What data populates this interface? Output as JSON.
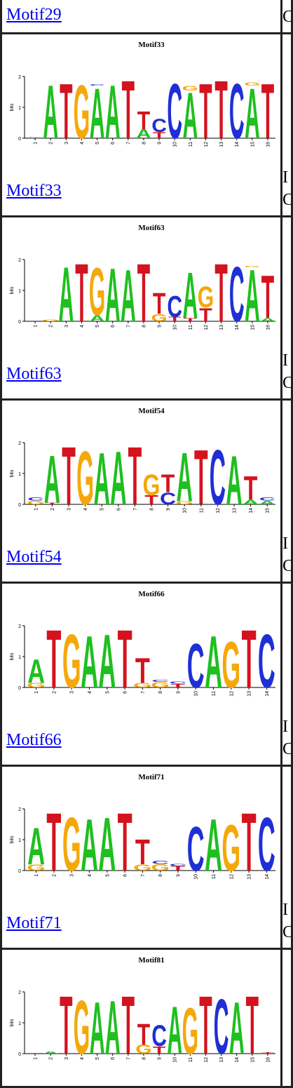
{
  "colors": {
    "A": "#1fbf1f",
    "C": "#1f2fd6",
    "G": "#f5a80a",
    "T": "#d4131f"
  },
  "axis_label": "bits",
  "top_row": {
    "link": "Motif29",
    "side": [
      "C"
    ]
  },
  "motifs": [
    {
      "name": "Motif33",
      "link": "Motif33",
      "side": [
        "I",
        "C"
      ],
      "positions": [
        [
          [
            "A",
            0.02
          ],
          [
            "C",
            0.01
          ]
        ],
        [
          [
            "A",
            1.8
          ]
        ],
        [
          [
            "T",
            1.85
          ]
        ],
        [
          [
            "G",
            1.8
          ]
        ],
        [
          [
            "A",
            1.7
          ],
          [
            "C",
            0.05
          ]
        ],
        [
          [
            "A",
            1.8
          ]
        ],
        [
          [
            "T",
            1.95
          ]
        ],
        [
          [
            "A",
            0.3
          ],
          [
            "T",
            0.6
          ]
        ],
        [
          [
            "T",
            0.2
          ],
          [
            "C",
            0.45
          ]
        ],
        [
          [
            "C",
            1.85
          ]
        ],
        [
          [
            "A",
            1.55
          ],
          [
            "G",
            0.15
          ]
        ],
        [
          [
            "T",
            1.85
          ]
        ],
        [
          [
            "T",
            1.95
          ]
        ],
        [
          [
            "C",
            1.85
          ]
        ],
        [
          [
            "A",
            1.7
          ],
          [
            "G",
            0.1
          ]
        ],
        [
          [
            "T",
            1.85
          ]
        ]
      ]
    },
    {
      "name": "Motif63",
      "link": "Motif63",
      "side": [
        "I",
        "C"
      ],
      "positions": [
        [],
        [
          [
            "G",
            0.06
          ]
        ],
        [
          [
            "A",
            1.85
          ]
        ],
        [
          [
            "T",
            1.95
          ]
        ],
        [
          [
            "A",
            0.2
          ],
          [
            "G",
            1.6
          ]
        ],
        [
          [
            "A",
            1.8
          ]
        ],
        [
          [
            "A",
            1.75
          ]
        ],
        [
          [
            "T",
            1.95
          ]
        ],
        [
          [
            "G",
            0.25
          ],
          [
            "T",
            0.7
          ]
        ],
        [
          [
            "T",
            0.15
          ],
          [
            "C",
            0.7
          ]
        ],
        [
          [
            "T",
            0.1
          ],
          [
            "A",
            1.55
          ]
        ],
        [
          [
            "T",
            0.45
          ],
          [
            "G",
            0.7
          ]
        ],
        [
          [
            "T",
            1.95
          ]
        ],
        [
          [
            "C",
            1.85
          ]
        ],
        [
          [
            "A",
            1.75
          ],
          [
            "G",
            0.05
          ]
        ],
        [
          [
            "A",
            0.1
          ],
          [
            "T",
            1.45
          ]
        ]
      ]
    },
    {
      "name": "Motif54",
      "link": "Motif54",
      "side": [
        "I",
        "C"
      ],
      "positions": [
        [
          [
            "G",
            0.12
          ],
          [
            "C",
            0.1
          ]
        ],
        [
          [
            "T",
            0.06
          ],
          [
            "A",
            1.6
          ]
        ],
        [
          [
            "T",
            1.95
          ]
        ],
        [
          [
            "G",
            1.8
          ]
        ],
        [
          [
            "A",
            1.75
          ]
        ],
        [
          [
            "A",
            1.8
          ]
        ],
        [
          [
            "T",
            1.95
          ]
        ],
        [
          [
            "T",
            0.3
          ],
          [
            "G",
            0.7
          ]
        ],
        [
          [
            "C",
            0.4
          ],
          [
            "T",
            0.6
          ]
        ],
        [
          [
            "G",
            0.1
          ],
          [
            "A",
            1.65
          ]
        ],
        [
          [
            "T",
            1.85
          ]
        ],
        [
          [
            "C",
            1.85
          ]
        ],
        [
          [
            "A",
            1.65
          ]
        ],
        [
          [
            "A",
            0.15
          ],
          [
            "T",
            0.8
          ]
        ],
        [
          [
            "A",
            0.12
          ],
          [
            "C",
            0.1
          ]
        ]
      ]
    },
    {
      "name": "Motif66",
      "link": "Motif66",
      "side": [
        "I",
        "C"
      ],
      "positions": [
        [
          [
            "G",
            0.15
          ],
          [
            "A",
            0.8
          ]
        ],
        [
          [
            "T",
            1.95
          ]
        ],
        [
          [
            "G",
            1.8
          ]
        ],
        [
          [
            "A",
            1.75
          ]
        ],
        [
          [
            "A",
            1.8
          ]
        ],
        [
          [
            "T",
            1.95
          ]
        ],
        [
          [
            "G",
            0.15
          ],
          [
            "T",
            0.85
          ]
        ],
        [
          [
            "G",
            0.18
          ],
          [
            "C",
            0.08
          ]
        ],
        [
          [
            "T",
            0.12
          ],
          [
            "C",
            0.08
          ]
        ],
        [
          [
            "C",
            1.5
          ]
        ],
        [
          [
            "A",
            1.75
          ]
        ],
        [
          [
            "G",
            1.55
          ]
        ],
        [
          [
            "T",
            1.95
          ]
        ],
        [
          [
            "C",
            1.8
          ]
        ]
      ]
    },
    {
      "name": "Motif71",
      "link": "Motif71",
      "side": [
        "I",
        "C"
      ],
      "positions": [
        [
          [
            "G",
            0.2
          ],
          [
            "A",
            1.25
          ]
        ],
        [
          [
            "T",
            1.95
          ]
        ],
        [
          [
            "G",
            1.8
          ]
        ],
        [
          [
            "A",
            1.75
          ]
        ],
        [
          [
            "A",
            1.8
          ]
        ],
        [
          [
            "T",
            1.95
          ]
        ],
        [
          [
            "G",
            0.2
          ],
          [
            "T",
            0.85
          ]
        ],
        [
          [
            "G",
            0.22
          ],
          [
            "C",
            0.1
          ]
        ],
        [
          [
            "T",
            0.15
          ],
          [
            "C",
            0.08
          ]
        ],
        [
          [
            "C",
            1.5
          ]
        ],
        [
          [
            "A",
            1.75
          ]
        ],
        [
          [
            "G",
            1.55
          ]
        ],
        [
          [
            "T",
            1.95
          ]
        ],
        [
          [
            "C",
            1.8
          ]
        ]
      ]
    },
    {
      "name": "Motif81",
      "link": "Motif81",
      "side": [],
      "positions": [
        [],
        [
          [
            "A",
            0.08
          ]
        ],
        [
          [
            "T",
            1.95
          ]
        ],
        [
          [
            "G",
            1.8
          ]
        ],
        [
          [
            "A",
            1.75
          ]
        ],
        [
          [
            "A",
            1.8
          ]
        ],
        [
          [
            "T",
            1.95
          ]
        ],
        [
          [
            "G",
            0.3
          ],
          [
            "T",
            0.7
          ]
        ],
        [
          [
            "T",
            0.25
          ],
          [
            "C",
            0.7
          ]
        ],
        [
          [
            "A",
            1.6
          ]
        ],
        [
          [
            "G",
            1.55
          ]
        ],
        [
          [
            "T",
            1.95
          ]
        ],
        [
          [
            "C",
            1.85
          ]
        ],
        [
          [
            "A",
            1.75
          ]
        ],
        [
          [
            "T",
            1.95
          ]
        ],
        [
          [
            "T",
            0.05
          ]
        ]
      ]
    }
  ]
}
